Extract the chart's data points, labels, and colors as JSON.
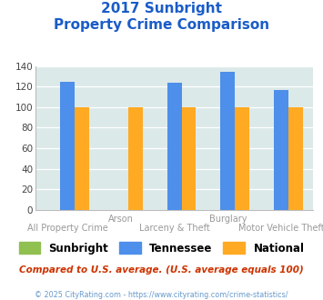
{
  "title_line1": "2017 Sunbright",
  "title_line2": "Property Crime Comparison",
  "x_labels_top": [
    "",
    "Arson",
    "",
    "Burglary",
    ""
  ],
  "x_labels_bottom": [
    "All Property Crime",
    "",
    "Larceny & Theft",
    "",
    "Motor Vehicle Theft"
  ],
  "sunbright": [
    0,
    0,
    0,
    0,
    0
  ],
  "tennessee": [
    125,
    0,
    124,
    134,
    117
  ],
  "national": [
    100,
    100,
    100,
    100,
    100
  ],
  "colors": {
    "sunbright": "#90c050",
    "tennessee": "#4d8fea",
    "national": "#ffaa22"
  },
  "ylim": [
    0,
    140
  ],
  "yticks": [
    0,
    20,
    40,
    60,
    80,
    100,
    120,
    140
  ],
  "plot_bg": "#dce9e9",
  "title_color": "#1a5cc8",
  "xlabel_color": "#999999",
  "footer_text": "Compared to U.S. average. (U.S. average equals 100)",
  "copyright_text": "© 2025 CityRating.com - https://www.cityrating.com/crime-statistics/",
  "legend_labels": [
    "Sunbright",
    "Tennessee",
    "National"
  ]
}
